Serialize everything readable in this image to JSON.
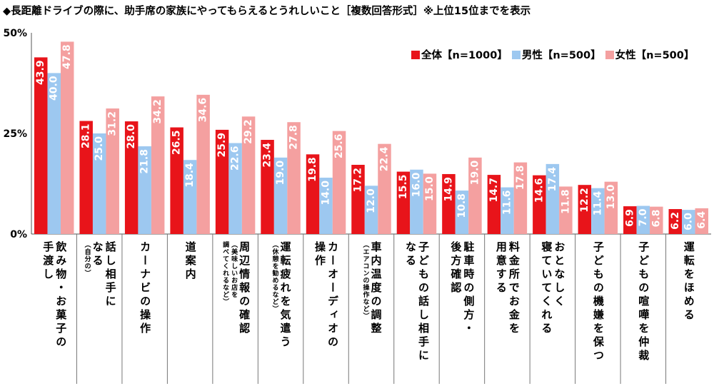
{
  "title": "◆長距離ドライブの際に、助手席の家族にやってもらえるとうれしいこと［複数回答形式］※上位15位までを表示",
  "chart_data": {
    "type": "bar",
    "ylim": [
      0,
      50
    ],
    "yticks": [
      "0%",
      "25%",
      "50%"
    ],
    "categories": [
      {
        "lines": [
          "飲み物・お菓子の",
          "手渡し"
        ],
        "small": []
      },
      {
        "lines": [
          "話し相手に",
          "なる"
        ],
        "small": [
          "（自分の）"
        ]
      },
      {
        "lines": [
          "カーナビの操作"
        ],
        "small": []
      },
      {
        "lines": [
          "道案内"
        ],
        "small": []
      },
      {
        "lines": [
          "周辺情報の確認"
        ],
        "small": [
          "（美味しいお店を",
          "調べてくれるなど）"
        ]
      },
      {
        "lines": [
          "運転疲れを気遣う"
        ],
        "small": [
          "（休憩を勧めるなど）"
        ]
      },
      {
        "lines": [
          "カーオーディオの",
          "操作"
        ],
        "small": []
      },
      {
        "lines": [
          "車内温度の調整"
        ],
        "small": [
          "（エアコンの操作など）"
        ]
      },
      {
        "lines": [
          "子どもの話し相手に",
          "なる"
        ],
        "small": []
      },
      {
        "lines": [
          "駐車時の側方・",
          "後方確認"
        ],
        "small": []
      },
      {
        "lines": [
          "料金所でお金を",
          "用意する"
        ],
        "small": []
      },
      {
        "lines": [
          "おとなしく",
          "寝ていてくれる"
        ],
        "small": []
      },
      {
        "lines": [
          "子どもの機嫌を保つ"
        ],
        "small": []
      },
      {
        "lines": [
          "子どもの喧嘩を仲裁"
        ],
        "small": []
      },
      {
        "lines": [
          "運転をほめる"
        ],
        "small": []
      }
    ],
    "series": [
      {
        "name": "全体【n=1000】",
        "color": "#e8141a",
        "values": [
          43.9,
          28.1,
          28.0,
          26.5,
          25.9,
          23.4,
          19.8,
          17.2,
          15.5,
          14.9,
          14.7,
          14.6,
          12.2,
          6.9,
          6.2
        ]
      },
      {
        "name": "男性【n=500】",
        "color": "#9dc8f0",
        "values": [
          40.0,
          25.0,
          21.8,
          18.4,
          22.6,
          19.0,
          14.0,
          12.0,
          16.0,
          10.8,
          11.6,
          17.4,
          11.4,
          7.0,
          6.0
        ]
      },
      {
        "name": "女性【n=500】",
        "color": "#f4a0a0",
        "values": [
          47.8,
          31.2,
          34.2,
          34.6,
          29.2,
          27.8,
          25.6,
          22.4,
          15.0,
          19.0,
          17.8,
          11.8,
          13.0,
          6.8,
          6.4
        ]
      }
    ]
  }
}
